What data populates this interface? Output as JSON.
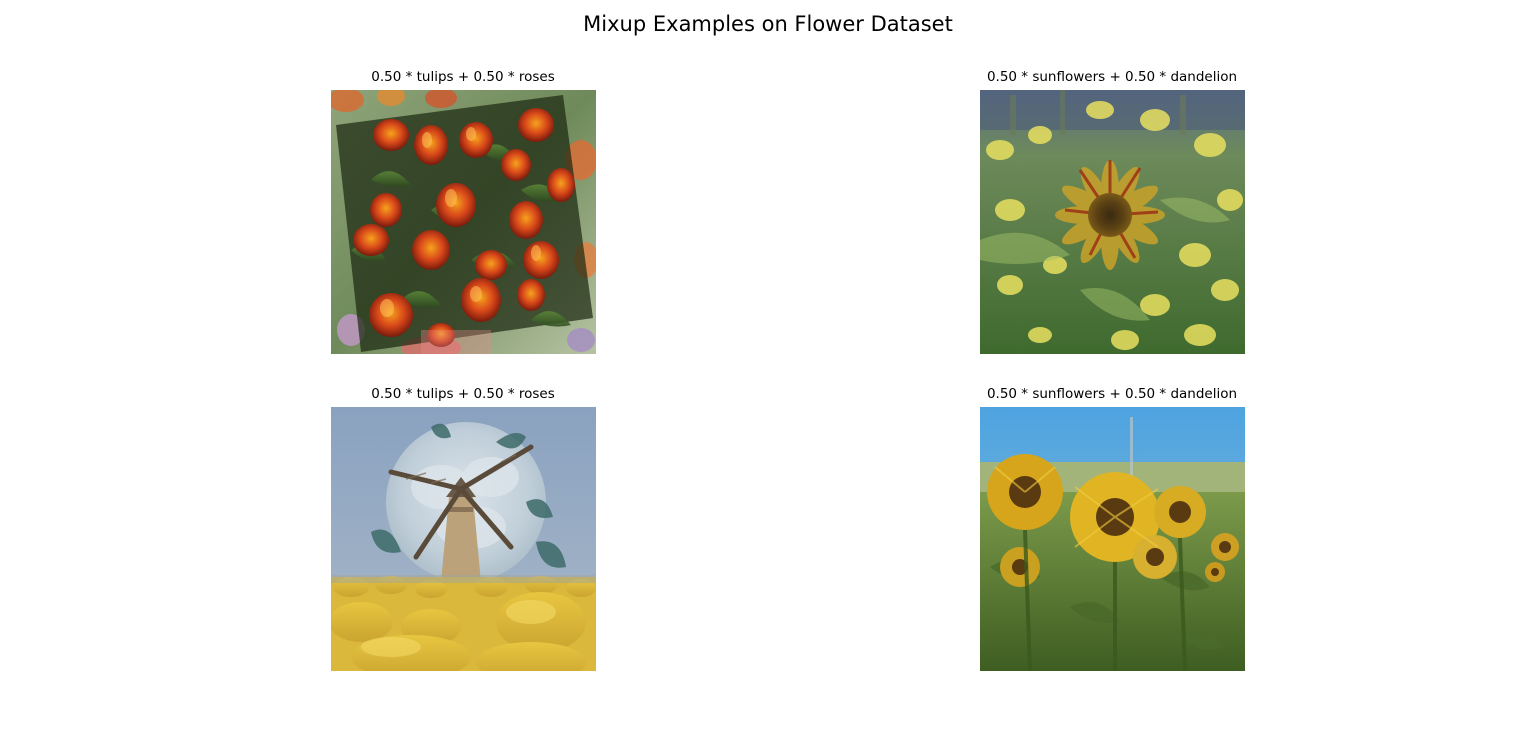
{
  "figure": {
    "title": "Mixup Examples on Flower Dataset"
  },
  "panels": [
    {
      "title": "0.50 * tulips + 0.50 * roses"
    },
    {
      "title": "0.50 * sunflowers + 0.50 * dandelion"
    },
    {
      "title": "0.50 * tulips + 0.50 * roses"
    },
    {
      "title": "0.50 * sunflowers + 0.50 * dandelion"
    }
  ]
}
